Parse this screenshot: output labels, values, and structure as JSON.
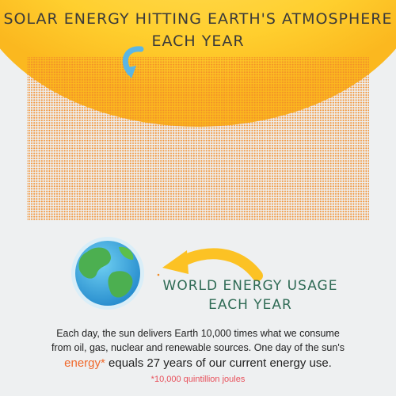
{
  "title": {
    "lines": [
      "SOLAR ENERGY HITTING EARTH'S ATMOSPHERE",
      "EACH YEAR"
    ]
  },
  "usage_label": {
    "lines": [
      "WORLD ENERGY USAGE",
      "EACH YEAR"
    ]
  },
  "body": {
    "lines": [
      "Each day, the sun delivers Earth 10,000 times what we consume",
      "from oil, gas, nuclear and renewable sources. One day of the sun's"
    ],
    "highlight": "energy*",
    "rest": " equals 27 years of our current energy use."
  },
  "footnote": "*10,000 quintillion joules"
}
